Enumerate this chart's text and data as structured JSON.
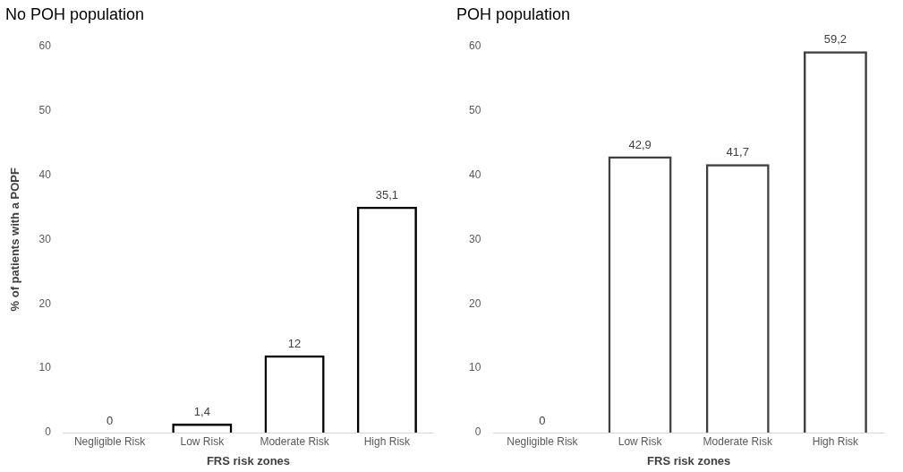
{
  "chart_data": [
    {
      "type": "bar",
      "title": "No POH population",
      "xlabel": "FRS risk zones",
      "ylabel": "% of patients with a POPF",
      "categories": [
        "Negligible Risk",
        "Low Risk",
        "Moderate Risk",
        "High Risk"
      ],
      "values": [
        0,
        1.4,
        12,
        35.1
      ],
      "value_labels": [
        "0",
        "1,4",
        "12",
        "35,1"
      ],
      "color": "#000000",
      "ylim": [
        0,
        60
      ],
      "yticks": [
        0,
        10,
        20,
        30,
        40,
        50,
        60
      ],
      "grid": false,
      "legend": false
    },
    {
      "type": "bar",
      "title": "POH population",
      "xlabel": "FRS risk zones",
      "categories": [
        "Negligible Risk",
        "Low Risk",
        "Moderate Risk",
        "High Risk"
      ],
      "values": [
        0,
        42.9,
        41.7,
        59.2
      ],
      "value_labels": [
        "0",
        "42,9",
        "41,7",
        "59,2"
      ],
      "color": "#404040",
      "ylim": [
        0,
        60
      ],
      "yticks": [
        0,
        10,
        20,
        30,
        40,
        50,
        60
      ],
      "grid": false,
      "legend": false
    }
  ]
}
